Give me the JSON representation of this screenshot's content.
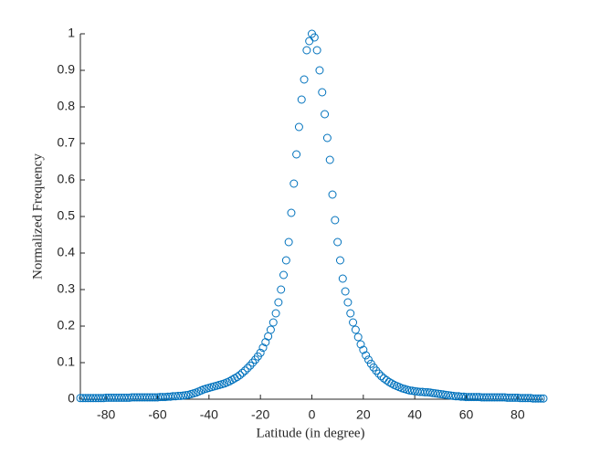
{
  "chart_data": {
    "type": "scatter",
    "x_label": "Latitude (in degree)",
    "y_label": "Normalized Frequency",
    "xlim": [
      -90,
      90
    ],
    "ylim": [
      0,
      1
    ],
    "xticks": [
      -80,
      -60,
      -40,
      -20,
      0,
      20,
      40,
      60,
      80
    ],
    "yticks": [
      0,
      0.1,
      0.2,
      0.3,
      0.4,
      0.5,
      0.6,
      0.7,
      0.8,
      0.9,
      1
    ],
    "grid": false,
    "series": [
      {
        "color": "#0072bd",
        "x": [
          -90,
          -89,
          -88,
          -87,
          -86,
          -85,
          -84,
          -83,
          -82,
          -81,
          -80,
          -79,
          -78,
          -77,
          -76,
          -75,
          -74,
          -73,
          -72,
          -71,
          -70,
          -69,
          -68,
          -67,
          -66,
          -65,
          -64,
          -63,
          -62,
          -61,
          -60,
          -59,
          -58,
          -57,
          -56,
          -55,
          -54,
          -53,
          -52,
          -51,
          -50,
          -49,
          -48,
          -47,
          -46,
          -45,
          -44,
          -43,
          -42,
          -41,
          -40,
          -39,
          -38,
          -37,
          -36,
          -35,
          -34,
          -33,
          -32,
          -31,
          -30,
          -29,
          -28,
          -27,
          -26,
          -25,
          -24,
          -23,
          -22,
          -21,
          -20,
          -19,
          -18,
          -17,
          -16,
          -15,
          -14,
          -13,
          -12,
          -11,
          -10,
          -9,
          -8,
          -7,
          -6,
          -5,
          -4,
          -3,
          -2,
          -1,
          0,
          1,
          2,
          3,
          4,
          5,
          6,
          7,
          8,
          9,
          10,
          11,
          12,
          13,
          14,
          15,
          16,
          17,
          18,
          19,
          20,
          21,
          22,
          23,
          24,
          25,
          26,
          27,
          28,
          29,
          30,
          31,
          32,
          33,
          34,
          35,
          36,
          37,
          38,
          39,
          40,
          41,
          42,
          43,
          44,
          45,
          46,
          47,
          48,
          49,
          50,
          51,
          52,
          53,
          54,
          55,
          56,
          57,
          58,
          59,
          60,
          61,
          62,
          63,
          64,
          65,
          66,
          67,
          68,
          69,
          70,
          71,
          72,
          73,
          74,
          75,
          76,
          77,
          78,
          79,
          80,
          81,
          82,
          83,
          84,
          85,
          86,
          87,
          88,
          89,
          90
        ],
        "values": [
          0.003,
          0.003,
          0.003,
          0.003,
          0.003,
          0.003,
          0.003,
          0.003,
          0.003,
          0.003,
          0.004,
          0.004,
          0.004,
          0.004,
          0.004,
          0.004,
          0.004,
          0.004,
          0.004,
          0.004,
          0.005,
          0.005,
          0.005,
          0.005,
          0.005,
          0.005,
          0.005,
          0.005,
          0.005,
          0.005,
          0.005,
          0.006,
          0.006,
          0.006,
          0.007,
          0.007,
          0.008,
          0.008,
          0.009,
          0.009,
          0.01,
          0.011,
          0.012,
          0.014,
          0.016,
          0.018,
          0.021,
          0.024,
          0.027,
          0.029,
          0.031,
          0.033,
          0.035,
          0.037,
          0.039,
          0.041,
          0.043,
          0.046,
          0.049,
          0.053,
          0.057,
          0.061,
          0.066,
          0.072,
          0.078,
          0.085,
          0.092,
          0.1,
          0.108,
          0.117,
          0.127,
          0.141,
          0.156,
          0.172,
          0.19,
          0.21,
          0.235,
          0.265,
          0.3,
          0.34,
          0.38,
          0.43,
          0.51,
          0.59,
          0.67,
          0.745,
          0.82,
          0.875,
          0.955,
          0.98,
          1,
          0.99,
          0.955,
          0.9,
          0.84,
          0.78,
          0.715,
          0.655,
          0.56,
          0.49,
          0.43,
          0.38,
          0.33,
          0.295,
          0.265,
          0.235,
          0.21,
          0.19,
          0.17,
          0.15,
          0.135,
          0.12,
          0.108,
          0.097,
          0.087,
          0.078,
          0.07,
          0.063,
          0.057,
          0.052,
          0.047,
          0.043,
          0.039,
          0.036,
          0.033,
          0.03,
          0.028,
          0.026,
          0.024,
          0.023,
          0.022,
          0.021,
          0.02,
          0.02,
          0.019,
          0.019,
          0.018,
          0.017,
          0.016,
          0.015,
          0.014,
          0.013,
          0.012,
          0.011,
          0.01,
          0.009,
          0.008,
          0.008,
          0.007,
          0.007,
          0.006,
          0.006,
          0.006,
          0.006,
          0.006,
          0.006,
          0.005,
          0.005,
          0.005,
          0.005,
          0.005,
          0.005,
          0.005,
          0.005,
          0.005,
          0.005,
          0.004,
          0.004,
          0.004,
          0.004,
          0.004,
          0.003,
          0.003,
          0.003,
          0.003,
          0.003,
          0.002,
          0.002,
          0.002,
          0.002,
          0.002
        ]
      }
    ]
  }
}
